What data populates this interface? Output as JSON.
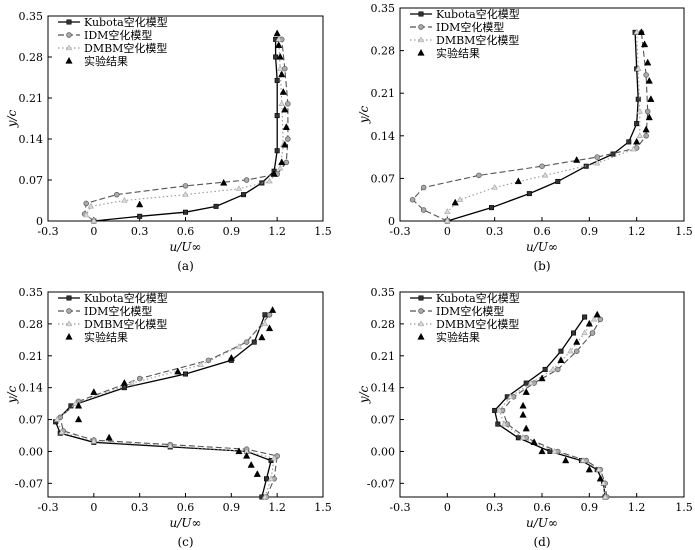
{
  "chart_data": [
    {
      "type": "line",
      "panel_label": "(a)",
      "xlabel": "u/U∞",
      "ylabel": "y/c",
      "xlim": [
        -0.3,
        1.5
      ],
      "ylim": [
        0,
        0.35
      ],
      "xticks": [
        -0.3,
        0,
        0.3,
        0.6,
        0.9,
        1.2,
        1.5
      ],
      "yticks": [
        0,
        0.07,
        0.14,
        0.21,
        0.28,
        0.35
      ],
      "xtick_labels": [
        "-0.3",
        "0",
        "0.3",
        "0.6",
        "0.9",
        "1.2",
        "1.5"
      ],
      "ytick_labels": [
        "0",
        "0.07",
        "0.14",
        "0.21",
        "0.28",
        "0.35"
      ],
      "legend_position": "top-left",
      "series": [
        {
          "name": "Kubota空化模型",
          "style": "solid",
          "marker": "square",
          "points": [
            [
              0.0,
              0.0
            ],
            [
              0.3,
              0.008
            ],
            [
              0.6,
              0.015
            ],
            [
              0.8,
              0.025
            ],
            [
              0.98,
              0.045
            ],
            [
              1.1,
              0.065
            ],
            [
              1.18,
              0.085
            ],
            [
              1.2,
              0.12
            ],
            [
              1.2,
              0.18
            ],
            [
              1.2,
              0.24
            ],
            [
              1.19,
              0.28
            ],
            [
              1.19,
              0.31
            ]
          ]
        },
        {
          "name": "IDM空化模型",
          "style": "dashed",
          "marker": "circle",
          "points": [
            [
              0.0,
              0.0
            ],
            [
              -0.06,
              0.012
            ],
            [
              -0.05,
              0.03
            ],
            [
              0.15,
              0.045
            ],
            [
              0.6,
              0.06
            ],
            [
              1.0,
              0.07
            ],
            [
              1.2,
              0.08
            ],
            [
              1.26,
              0.1
            ],
            [
              1.27,
              0.14
            ],
            [
              1.27,
              0.2
            ],
            [
              1.25,
              0.26
            ],
            [
              1.23,
              0.31
            ]
          ]
        },
        {
          "name": "DMBM空化模型",
          "style": "dotted",
          "marker": "triangle-open",
          "points": [
            [
              0.0,
              0.0
            ],
            [
              -0.05,
              0.01
            ],
            [
              -0.02,
              0.025
            ],
            [
              0.2,
              0.035
            ],
            [
              0.6,
              0.045
            ],
            [
              0.95,
              0.055
            ],
            [
              1.15,
              0.068
            ],
            [
              1.22,
              0.09
            ],
            [
              1.24,
              0.13
            ],
            [
              1.23,
              0.2
            ],
            [
              1.22,
              0.26
            ],
            [
              1.21,
              0.31
            ]
          ]
        }
      ],
      "experiment": {
        "name": "实验结果",
        "marker": "triangle-filled",
        "points": [
          [
            0.3,
            0.028
          ],
          [
            0.85,
            0.065
          ],
          [
            1.18,
            0.08
          ],
          [
            1.23,
            0.1
          ],
          [
            1.25,
            0.13
          ],
          [
            1.26,
            0.16
          ],
          [
            1.25,
            0.19
          ],
          [
            1.24,
            0.22
          ],
          [
            1.23,
            0.25
          ],
          [
            1.22,
            0.28
          ],
          [
            1.21,
            0.3
          ],
          [
            1.2,
            0.32
          ]
        ]
      }
    },
    {
      "type": "line",
      "panel_label": "(b)",
      "xlabel": "u/U∞",
      "ylabel": "y/c",
      "xlim": [
        -0.3,
        1.5
      ],
      "ylim": [
        0,
        0.35
      ],
      "xticks": [
        -0.3,
        0,
        0.3,
        0.6,
        0.9,
        1.2,
        1.5
      ],
      "yticks": [
        0,
        0.07,
        0.14,
        0.21,
        0.28,
        0.35
      ],
      "xtick_labels": [
        "-0.3",
        "0",
        "0.3",
        "0.6",
        "0.9",
        "1.2",
        "1.5"
      ],
      "ytick_labels": [
        "0",
        "0.07",
        "0.14",
        "0.21",
        "0.28",
        "0.35"
      ],
      "legend_position": "top-left",
      "series": [
        {
          "name": "Kubota空化模型",
          "style": "solid",
          "marker": "square",
          "points": [
            [
              0.0,
              0.0
            ],
            [
              0.28,
              0.022
            ],
            [
              0.52,
              0.045
            ],
            [
              0.7,
              0.065
            ],
            [
              0.88,
              0.09
            ],
            [
              1.05,
              0.11
            ],
            [
              1.15,
              0.13
            ],
            [
              1.2,
              0.16
            ],
            [
              1.21,
              0.2
            ],
            [
              1.2,
              0.25
            ],
            [
              1.19,
              0.31
            ]
          ]
        },
        {
          "name": "IDM空化模型",
          "style": "dashed",
          "marker": "circle",
          "points": [
            [
              0.0,
              0.0
            ],
            [
              -0.15,
              0.018
            ],
            [
              -0.22,
              0.035
            ],
            [
              -0.15,
              0.055
            ],
            [
              0.2,
              0.075
            ],
            [
              0.6,
              0.09
            ],
            [
              0.95,
              0.105
            ],
            [
              1.2,
              0.12
            ],
            [
              1.26,
              0.14
            ],
            [
              1.27,
              0.18
            ],
            [
              1.26,
              0.24
            ],
            [
              1.23,
              0.31
            ]
          ]
        },
        {
          "name": "DMBM空化模型",
          "style": "dotted",
          "marker": "triangle-open",
          "points": [
            [
              0.0,
              0.0
            ],
            [
              0.0,
              0.015
            ],
            [
              0.08,
              0.035
            ],
            [
              0.3,
              0.055
            ],
            [
              0.62,
              0.075
            ],
            [
              0.95,
              0.095
            ],
            [
              1.18,
              0.118
            ],
            [
              1.22,
              0.14
            ],
            [
              1.22,
              0.18
            ],
            [
              1.21,
              0.25
            ],
            [
              1.2,
              0.31
            ]
          ]
        }
      ],
      "experiment": {
        "name": "实验结果",
        "marker": "triangle-filled",
        "points": [
          [
            0.05,
            0.03
          ],
          [
            0.45,
            0.065
          ],
          [
            0.82,
            0.1
          ],
          [
            1.2,
            0.13
          ],
          [
            1.26,
            0.15
          ],
          [
            1.28,
            0.17
          ],
          [
            1.29,
            0.2
          ],
          [
            1.28,
            0.23
          ],
          [
            1.27,
            0.26
          ],
          [
            1.25,
            0.29
          ],
          [
            1.23,
            0.31
          ]
        ]
      }
    },
    {
      "type": "line",
      "panel_label": "(c)",
      "xlabel": "u/U∞",
      "ylabel": "y/c",
      "xlim": [
        -0.3,
        1.5
      ],
      "ylim": [
        -0.1,
        0.35
      ],
      "xticks": [
        -0.3,
        0,
        0.3,
        0.6,
        0.9,
        1.2,
        1.5
      ],
      "yticks": [
        -0.07,
        0,
        0.07,
        0.14,
        0.21,
        0.28,
        0.35
      ],
      "xtick_labels": [
        "-0.3",
        "0",
        "0.3",
        "0.6",
        "0.9",
        "1.2",
        "1.5"
      ],
      "ytick_labels": [
        "-0.07",
        "0.00",
        "0.07",
        "0.14",
        "0.21",
        "0.28",
        "0.35"
      ],
      "legend_position": "top-left",
      "series": [
        {
          "name": "Kubota空化模型",
          "style": "solid",
          "marker": "square",
          "points": [
            [
              1.1,
              -0.1
            ],
            [
              1.13,
              -0.06
            ],
            [
              1.16,
              -0.02
            ],
            [
              1.0,
              0.0
            ],
            [
              0.5,
              0.01
            ],
            [
              0.0,
              0.02
            ],
            [
              -0.22,
              0.04
            ],
            [
              -0.25,
              0.065
            ],
            [
              -0.15,
              0.1
            ],
            [
              0.2,
              0.14
            ],
            [
              0.6,
              0.17
            ],
            [
              0.9,
              0.2
            ],
            [
              1.05,
              0.24
            ],
            [
              1.12,
              0.3
            ]
          ]
        },
        {
          "name": "IDM空化模型",
          "style": "dashed",
          "marker": "circle",
          "points": [
            [
              1.13,
              -0.1
            ],
            [
              1.18,
              -0.06
            ],
            [
              1.2,
              -0.01
            ],
            [
              1.0,
              0.005
            ],
            [
              0.5,
              0.015
            ],
            [
              0.0,
              0.025
            ],
            [
              -0.2,
              0.045
            ],
            [
              -0.22,
              0.075
            ],
            [
              -0.1,
              0.11
            ],
            [
              0.3,
              0.16
            ],
            [
              0.75,
              0.2
            ],
            [
              1.0,
              0.24
            ],
            [
              1.15,
              0.3
            ]
          ]
        },
        {
          "name": "DMBM空化模型",
          "style": "dotted",
          "marker": "triangle-open",
          "points": [
            [
              1.12,
              -0.1
            ],
            [
              1.16,
              -0.06
            ],
            [
              1.18,
              -0.015
            ],
            [
              1.0,
              0.0
            ],
            [
              0.5,
              0.012
            ],
            [
              0.0,
              0.022
            ],
            [
              -0.21,
              0.042
            ],
            [
              -0.24,
              0.07
            ],
            [
              -0.12,
              0.105
            ],
            [
              0.25,
              0.15
            ],
            [
              0.7,
              0.19
            ],
            [
              0.95,
              0.23
            ],
            [
              1.12,
              0.28
            ]
          ]
        }
      ],
      "experiment": {
        "name": "实验结果",
        "marker": "triangle-filled",
        "points": [
          [
            1.07,
            -0.05
          ],
          [
            1.03,
            -0.03
          ],
          [
            1.0,
            -0.01
          ],
          [
            0.95,
            0.0
          ],
          [
            0.1,
            0.03
          ],
          [
            -0.1,
            0.07
          ],
          [
            -0.1,
            0.1
          ],
          [
            0.0,
            0.13
          ],
          [
            0.2,
            0.15
          ],
          [
            0.55,
            0.175
          ],
          [
            0.9,
            0.205
          ],
          [
            1.1,
            0.25
          ],
          [
            1.15,
            0.27
          ],
          [
            1.17,
            0.31
          ]
        ]
      }
    },
    {
      "type": "line",
      "panel_label": "(d)",
      "xlabel": "u/U∞",
      "ylabel": "y/c",
      "xlim": [
        -0.3,
        1.5
      ],
      "ylim": [
        -0.1,
        0.35
      ],
      "xticks": [
        -0.3,
        0,
        0.3,
        0.6,
        0.9,
        1.2,
        1.5
      ],
      "yticks": [
        -0.07,
        0,
        0.07,
        0.14,
        0.21,
        0.28,
        0.35
      ],
      "xtick_labels": [
        "-0.3",
        "0",
        "0.3",
        "0.6",
        "0.9",
        "1.2",
        "1.5"
      ],
      "ytick_labels": [
        "-0.07",
        "0.00",
        "0.07",
        "0.14",
        "0.21",
        "0.28",
        "0.35"
      ],
      "legend_position": "top-left",
      "series": [
        {
          "name": "Kubota空化模型",
          "style": "solid",
          "marker": "square",
          "points": [
            [
              1.0,
              -0.1
            ],
            [
              0.99,
              -0.07
            ],
            [
              0.95,
              -0.04
            ],
            [
              0.85,
              -0.02
            ],
            [
              0.65,
              0.0
            ],
            [
              0.45,
              0.03
            ],
            [
              0.32,
              0.06
            ],
            [
              0.3,
              0.09
            ],
            [
              0.38,
              0.12
            ],
            [
              0.5,
              0.15
            ],
            [
              0.62,
              0.18
            ],
            [
              0.72,
              0.22
            ],
            [
              0.8,
              0.26
            ],
            [
              0.87,
              0.295
            ]
          ]
        },
        {
          "name": "IDM空化模型",
          "style": "dashed",
          "marker": "circle",
          "points": [
            [
              1.01,
              -0.1
            ],
            [
              1.0,
              -0.07
            ],
            [
              0.97,
              -0.04
            ],
            [
              0.88,
              -0.02
            ],
            [
              0.7,
              0.0
            ],
            [
              0.5,
              0.03
            ],
            [
              0.38,
              0.06
            ],
            [
              0.35,
              0.09
            ],
            [
              0.42,
              0.12
            ],
            [
              0.55,
              0.15
            ],
            [
              0.7,
              0.18
            ],
            [
              0.82,
              0.22
            ],
            [
              0.92,
              0.26
            ],
            [
              0.97,
              0.29
            ]
          ]
        },
        {
          "name": "DMBM空化模型",
          "style": "dotted",
          "marker": "triangle-open",
          "points": [
            [
              1.0,
              -0.1
            ],
            [
              0.99,
              -0.07
            ],
            [
              0.96,
              -0.04
            ],
            [
              0.86,
              -0.02
            ],
            [
              0.68,
              0.0
            ],
            [
              0.48,
              0.03
            ],
            [
              0.36,
              0.06
            ],
            [
              0.33,
              0.09
            ],
            [
              0.4,
              0.12
            ],
            [
              0.53,
              0.15
            ],
            [
              0.67,
              0.18
            ],
            [
              0.78,
              0.22
            ],
            [
              0.87,
              0.26
            ],
            [
              0.93,
              0.29
            ]
          ]
        }
      ],
      "experiment": {
        "name": "实验结果",
        "marker": "triangle-filled",
        "points": [
          [
            0.97,
            -0.06
          ],
          [
            0.9,
            -0.04
          ],
          [
            0.75,
            -0.02
          ],
          [
            0.6,
            0.0
          ],
          [
            0.55,
            0.02
          ],
          [
            0.5,
            0.05
          ],
          [
            0.48,
            0.08
          ],
          [
            0.48,
            0.1
          ],
          [
            0.5,
            0.13
          ],
          [
            0.6,
            0.16
          ],
          [
            0.72,
            0.2
          ],
          [
            0.82,
            0.24
          ],
          [
            0.9,
            0.28
          ],
          [
            0.95,
            0.3
          ]
        ]
      }
    }
  ]
}
